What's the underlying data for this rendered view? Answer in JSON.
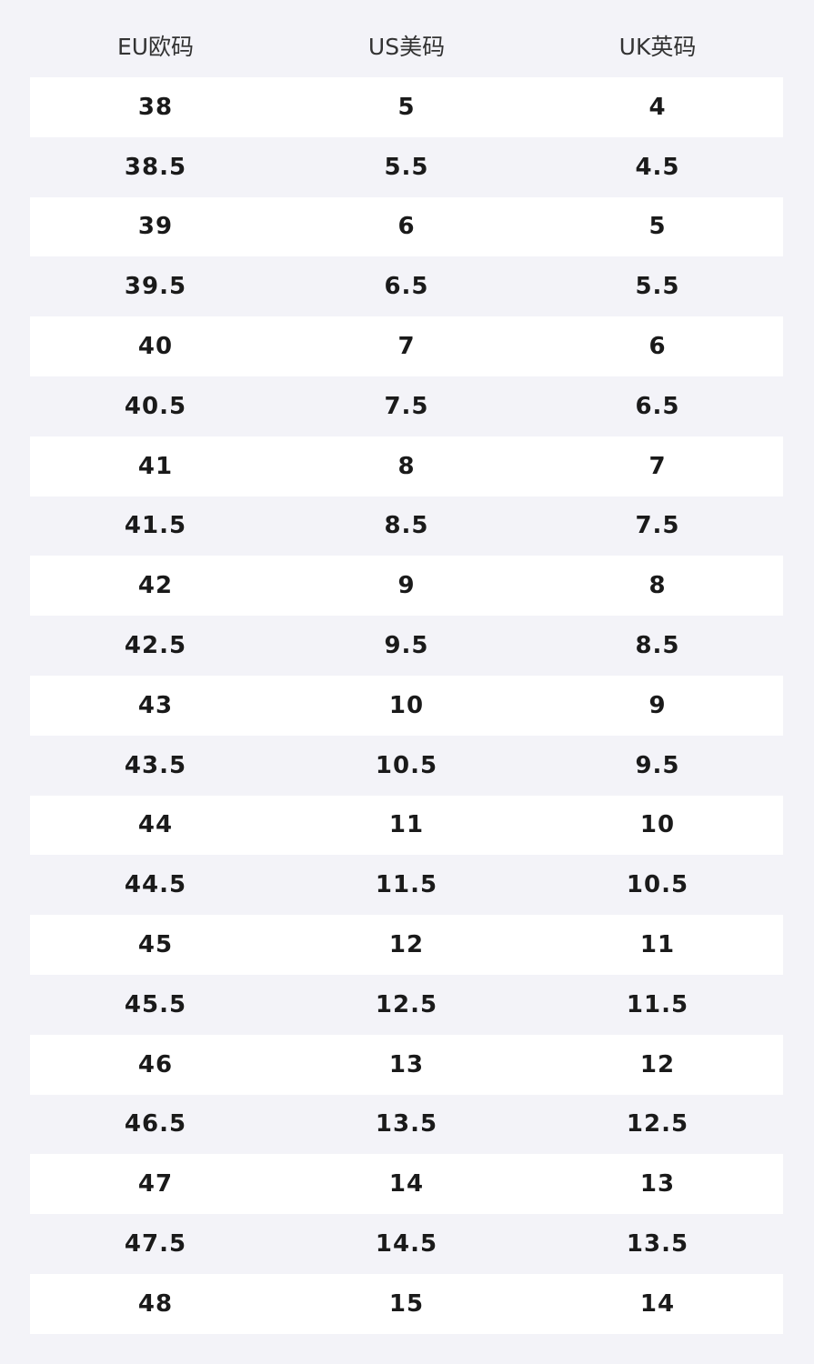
{
  "table": {
    "header": [
      "EU欧码",
      "US美码",
      "UK英码"
    ],
    "rows": [
      [
        "38",
        "5",
        "4"
      ],
      [
        "38.5",
        "5.5",
        "4.5"
      ],
      [
        "39",
        "6",
        "5"
      ],
      [
        "39.5",
        "6.5",
        "5.5"
      ],
      [
        "40",
        "7",
        "6"
      ],
      [
        "40.5",
        "7.5",
        "6.5"
      ],
      [
        "41",
        "8",
        "7"
      ],
      [
        "41.5",
        "8.5",
        "7.5"
      ],
      [
        "42",
        "9",
        "8"
      ],
      [
        "42.5",
        "9.5",
        "8.5"
      ],
      [
        "43",
        "10",
        "9"
      ],
      [
        "43.5",
        "10.5",
        "9.5"
      ],
      [
        "44",
        "11",
        "10"
      ],
      [
        "44.5",
        "11.5",
        "10.5"
      ],
      [
        "45",
        "12",
        "11"
      ],
      [
        "45.5",
        "12.5",
        "11.5"
      ],
      [
        "46",
        "13",
        "12"
      ],
      [
        "46.5",
        "13.5",
        "12.5"
      ],
      [
        "47",
        "14",
        "13"
      ],
      [
        "47.5",
        "14.5",
        "13.5"
      ],
      [
        "48",
        "15",
        "14"
      ]
    ]
  }
}
